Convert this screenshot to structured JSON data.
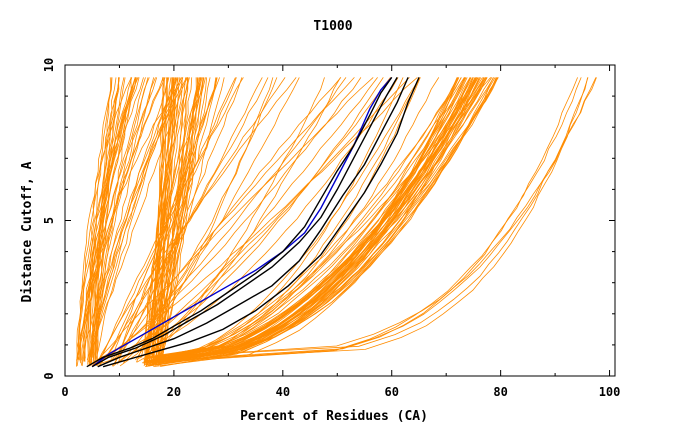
{
  "chart_data": {
    "type": "line",
    "title": "T1000",
    "xlabel": "Percent of Residues (CA)",
    "ylabel": "Distance Cutoff, A",
    "xlim": [
      0,
      101
    ],
    "ylim": [
      0,
      10
    ],
    "xticks": [
      0,
      20,
      40,
      60,
      80,
      100
    ],
    "yticks": [
      0,
      5,
      10
    ],
    "grid": false,
    "colors": {
      "background": "#ffffff",
      "axes": "#000000",
      "orange": "#ff8c00",
      "black": "#000000",
      "blue": "#0000cc"
    },
    "series_highlight": [
      {
        "name": "blue",
        "color": "#0000cc",
        "points": [
          [
            5,
            0.3
          ],
          [
            8,
            0.7
          ],
          [
            12,
            1.1
          ],
          [
            16,
            1.5
          ],
          [
            20,
            1.9
          ],
          [
            25,
            2.4
          ],
          [
            30,
            2.9
          ],
          [
            35,
            3.4
          ],
          [
            40,
            4.0
          ],
          [
            44,
            4.6
          ],
          [
            47,
            5.4
          ],
          [
            50,
            6.4
          ],
          [
            53,
            7.4
          ],
          [
            56,
            8.6
          ],
          [
            58,
            9.2
          ],
          [
            60,
            9.6
          ]
        ]
      },
      {
        "name": "black-1",
        "color": "#000000",
        "points": [
          [
            4,
            0.3
          ],
          [
            7,
            0.6
          ],
          [
            12,
            0.9
          ],
          [
            16,
            1.2
          ],
          [
            20,
            1.6
          ],
          [
            25,
            2.1
          ],
          [
            30,
            2.7
          ],
          [
            35,
            3.3
          ],
          [
            40,
            4.0
          ],
          [
            44,
            4.8
          ],
          [
            47,
            5.7
          ],
          [
            50,
            6.6
          ],
          [
            53,
            7.4
          ],
          [
            56,
            8.4
          ],
          [
            58,
            9.1
          ],
          [
            60,
            9.6
          ]
        ]
      },
      {
        "name": "black-2",
        "color": "#000000",
        "points": [
          [
            5,
            0.3
          ],
          [
            8,
            0.6
          ],
          [
            13,
            0.9
          ],
          [
            18,
            1.3
          ],
          [
            23,
            1.8
          ],
          [
            28,
            2.3
          ],
          [
            33,
            2.9
          ],
          [
            38,
            3.5
          ],
          [
            43,
            4.3
          ],
          [
            47,
            5.1
          ],
          [
            50,
            6.0
          ],
          [
            53,
            7.0
          ],
          [
            56,
            8.0
          ],
          [
            59,
            9.0
          ],
          [
            61,
            9.6
          ]
        ]
      },
      {
        "name": "black-3",
        "color": "#000000",
        "points": [
          [
            6,
            0.3
          ],
          [
            10,
            0.6
          ],
          [
            15,
            0.9
          ],
          [
            20,
            1.2
          ],
          [
            26,
            1.7
          ],
          [
            32,
            2.3
          ],
          [
            38,
            2.9
          ],
          [
            43,
            3.7
          ],
          [
            47,
            4.7
          ],
          [
            51,
            5.8
          ],
          [
            55,
            6.8
          ],
          [
            58,
            7.8
          ],
          [
            61,
            8.8
          ],
          [
            63,
            9.6
          ]
        ]
      },
      {
        "name": "black-4",
        "color": "#000000",
        "points": [
          [
            7,
            0.3
          ],
          [
            11,
            0.5
          ],
          [
            17,
            0.8
          ],
          [
            23,
            1.1
          ],
          [
            29,
            1.5
          ],
          [
            35,
            2.1
          ],
          [
            41,
            2.9
          ],
          [
            47,
            3.9
          ],
          [
            51,
            4.9
          ],
          [
            55,
            5.9
          ],
          [
            58,
            6.8
          ],
          [
            61,
            7.8
          ],
          [
            63,
            8.8
          ],
          [
            65,
            9.6
          ]
        ]
      }
    ],
    "orange_groups": [
      {
        "name": "steep-left",
        "count": 40,
        "x_start": [
          2,
          6
        ],
        "x_end": [
          8,
          23
        ],
        "curvature": [
          0.4,
          1.0
        ]
      },
      {
        "name": "steep-20",
        "count": 40,
        "x_start": [
          14,
          18
        ],
        "x_end": [
          18,
          26
        ],
        "curvature": [
          0.6,
          1.6
        ]
      },
      {
        "name": "mid-fan",
        "count": 30,
        "x_start": [
          5,
          15
        ],
        "x_end": [
          25,
          65
        ],
        "curvature": [
          0.8,
          1.6
        ]
      },
      {
        "name": "dense-70s",
        "count": 45,
        "x_start": [
          14,
          18
        ],
        "x_end": [
          72,
          80
        ],
        "curvature": [
          1.8,
          2.6
        ]
      },
      {
        "name": "low-spread",
        "count": 10,
        "x_start": [
          15,
          18
        ],
        "x_end": [
          60,
          80
        ],
        "curvature": [
          1.5,
          2.2
        ]
      },
      {
        "name": "far-right",
        "count": 6,
        "x_start": [
          15,
          17
        ],
        "x_end": [
          94,
          99
        ],
        "curvature": [
          3.5,
          4.5
        ]
      }
    ]
  }
}
